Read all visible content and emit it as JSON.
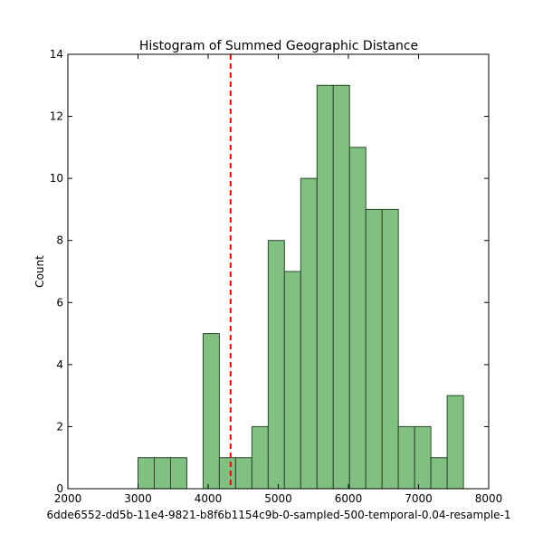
{
  "chart_data": {
    "type": "bar",
    "title": "Histogram of Summed Geographic Distance",
    "xlabel": "6dde6552-dd5b-11e4-9821-b8f6b1154c9b-0-sampled-500-temporal-0.04-resample-1",
    "ylabel": "Count",
    "xlim": [
      2000,
      8000
    ],
    "ylim": [
      0,
      14
    ],
    "xticks": [
      2000,
      3000,
      4000,
      5000,
      6000,
      7000,
      8000
    ],
    "yticks": [
      0,
      2,
      4,
      6,
      8,
      10,
      12,
      14
    ],
    "bin_width": 232,
    "bins": [
      {
        "x0": 3000,
        "count": 1
      },
      {
        "x0": 3232,
        "count": 1
      },
      {
        "x0": 3464,
        "count": 1
      },
      {
        "x0": 3696,
        "count": 0
      },
      {
        "x0": 3928,
        "count": 5
      },
      {
        "x0": 4160,
        "count": 1
      },
      {
        "x0": 4392,
        "count": 1
      },
      {
        "x0": 4624,
        "count": 2
      },
      {
        "x0": 4856,
        "count": 8
      },
      {
        "x0": 5088,
        "count": 7
      },
      {
        "x0": 5320,
        "count": 10
      },
      {
        "x0": 5552,
        "count": 13
      },
      {
        "x0": 5784,
        "count": 13
      },
      {
        "x0": 6016,
        "count": 11
      },
      {
        "x0": 6248,
        "count": 9
      },
      {
        "x0": 6480,
        "count": 9
      },
      {
        "x0": 6712,
        "count": 2
      },
      {
        "x0": 6944,
        "count": 2
      },
      {
        "x0": 7176,
        "count": 1
      },
      {
        "x0": 7408,
        "count": 3
      }
    ],
    "reference_line": {
      "x": 4320,
      "color": "#ff0000",
      "style": "dashed"
    },
    "bar_color": "#80c080",
    "bar_edge_color": "#2a4a2a",
    "grid": false,
    "legend": "none"
  }
}
